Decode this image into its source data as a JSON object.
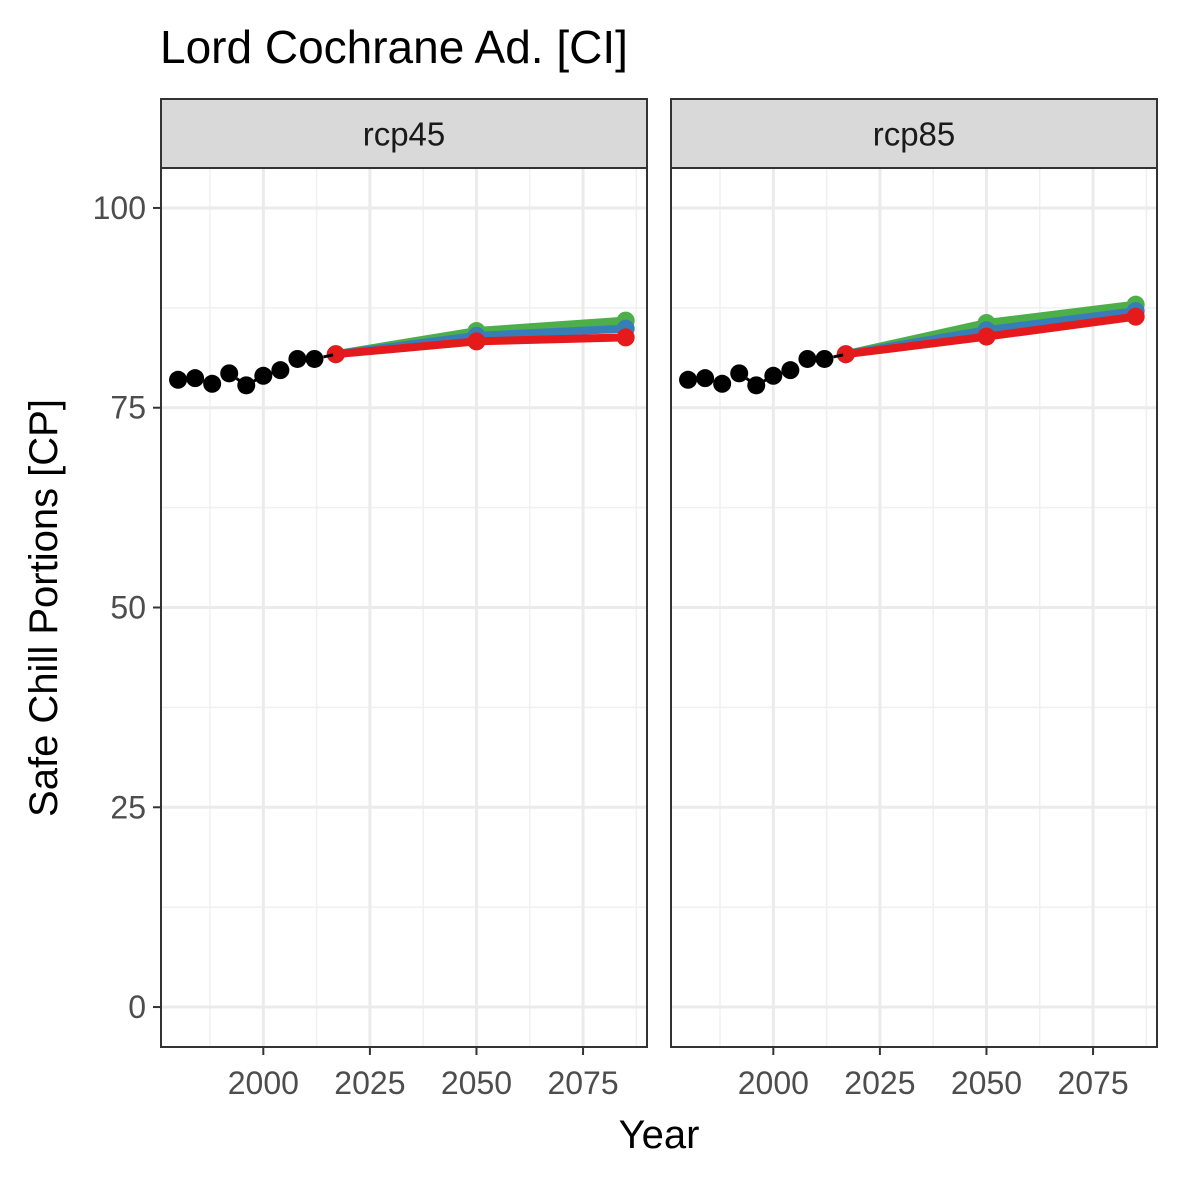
{
  "chart_data": {
    "type": "line",
    "title": "Lord Cochrane Ad. [CI]",
    "xlabel": "Year",
    "ylabel": "Safe Chill Portions [CP]",
    "xlim": [
      1976,
      2090
    ],
    "ylim": [
      -5,
      105
    ],
    "x_ticks": [
      2000,
      2025,
      2050,
      2075
    ],
    "y_ticks": [
      0,
      25,
      50,
      75,
      100
    ],
    "grid": true,
    "legend": "none",
    "colors": {
      "historic": "#000000",
      "green": "#4daf4a",
      "blue": "#377eb8",
      "red": "#e41a1c"
    },
    "panels": [
      {
        "strip": "rcp45",
        "historic": {
          "x": [
            1980,
            1984,
            1988,
            1992,
            1996,
            2000,
            2004,
            2008,
            2012
          ],
          "y": [
            78.5,
            78.7,
            78.0,
            79.3,
            77.8,
            79.0,
            79.7,
            81.1,
            81.1
          ]
        },
        "series": [
          {
            "color": "green",
            "x": [
              2017,
              2050,
              2085
            ],
            "y": [
              81.7,
              84.6,
              85.9
            ]
          },
          {
            "color": "blue",
            "x": [
              2017,
              2050,
              2085
            ],
            "y": [
              81.7,
              84.0,
              84.9
            ]
          },
          {
            "color": "red",
            "x": [
              2017,
              2050,
              2085
            ],
            "y": [
              81.7,
              83.3,
              83.8
            ]
          }
        ]
      },
      {
        "strip": "rcp85",
        "historic": {
          "x": [
            1980,
            1984,
            1988,
            1992,
            1996,
            2000,
            2004,
            2008,
            2012
          ],
          "y": [
            78.5,
            78.7,
            78.0,
            79.3,
            77.8,
            79.0,
            79.7,
            81.1,
            81.1
          ]
        },
        "series": [
          {
            "color": "green",
            "x": [
              2017,
              2050,
              2085
            ],
            "y": [
              81.7,
              85.6,
              87.9
            ]
          },
          {
            "color": "blue",
            "x": [
              2017,
              2050,
              2085
            ],
            "y": [
              81.7,
              84.7,
              87.1
            ]
          },
          {
            "color": "red",
            "x": [
              2017,
              2050,
              2085
            ],
            "y": [
              81.7,
              83.9,
              86.4
            ]
          }
        ]
      }
    ]
  }
}
